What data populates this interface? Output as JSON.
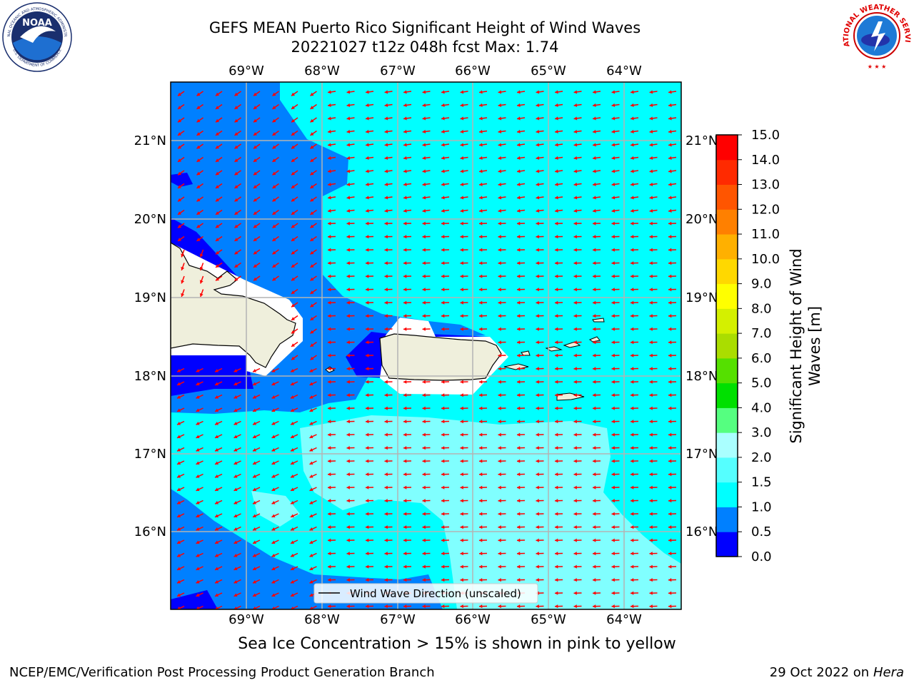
{
  "title_line1": "GEFS MEAN Puerto Rico Significant Height of Wind Waves",
  "title_line2": "20221027 t12z 048h fcst   Max: 1.74",
  "footer_note": "Sea Ice Concentration > 15% is shown in pink to yellow",
  "credit": "NCEP/EMC/Verification Post Processing Product Generation Branch",
  "date_text": "29 Oct 2022 on ",
  "machine": "Hera",
  "noaa_logo": {
    "center_text": "NOAA",
    "ring_top": "NATIONAL OCEANIC AND ATMOSPHERIC ADMINISTRATION",
    "ring_bottom": "U.S. DEPARTMENT OF COMMERCE"
  },
  "nws_logo": {
    "ring_text": "NATIONAL WEATHER SERVICE"
  },
  "map": {
    "lon_labels": [
      "69°W",
      "68°W",
      "67°W",
      "66°W",
      "65°W",
      "64°W"
    ],
    "lat_labels": [
      "21°N",
      "20°N",
      "19°N",
      "18°N",
      "17°N",
      "16°N"
    ],
    "legend_label": "Wind Wave Direction (unscaled)",
    "arrow_color": "#ff0000",
    "fill_colors": {
      "very_low": "#0000ff",
      "low": "#0080ff",
      "mid": "#00ffff",
      "high": "#80ffff",
      "land": "#efefdc"
    }
  },
  "colorbar": {
    "label_line1": "Significant Height of Wind",
    "label_line2": "Waves [m]",
    "ticks": [
      "0.0",
      "0.5",
      "1.0",
      "1.5",
      "2.0",
      "3.0",
      "4.0",
      "5.0",
      "6.0",
      "7.0",
      "8.0",
      "9.0",
      "10.0",
      "11.0",
      "12.0",
      "13.0",
      "14.0",
      "15.0"
    ],
    "colors": [
      "#0000ff",
      "#0080ff",
      "#00ffff",
      "#55ffff",
      "#aaffff",
      "#55ff80",
      "#00e000",
      "#55e000",
      "#aadd00",
      "#d4f000",
      "#ffff00",
      "#ffd800",
      "#ffb000",
      "#ff8000",
      "#ff5500",
      "#ff2a00",
      "#ff0000"
    ]
  }
}
